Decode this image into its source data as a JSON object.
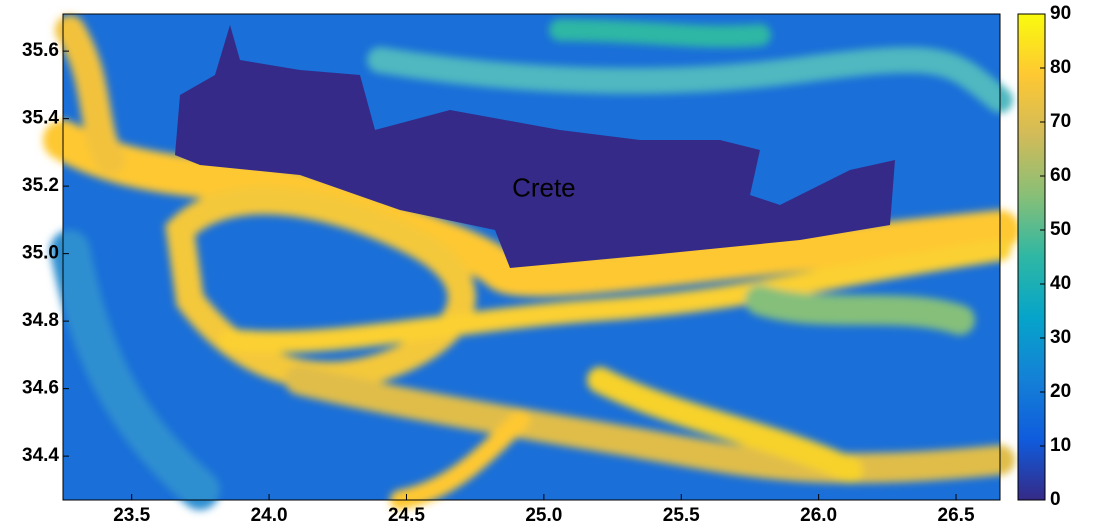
{
  "chart_data": {
    "type": "heatmap",
    "annotation": "Crete",
    "annotation_position": {
      "x": 25.0,
      "y": 35.19
    },
    "xlim": [
      23.25,
      26.66
    ],
    "ylim": [
      34.27,
      35.71
    ],
    "xticks": [
      23.5,
      {
        "value": 24,
        "label": "24.0"
      },
      24.5,
      {
        "value": 25,
        "label": "25.0"
      },
      25.5,
      {
        "value": 26,
        "label": "26.0"
      },
      26.5
    ],
    "yticks": [
      34.4,
      34.6,
      34.8,
      {
        "value": 35,
        "label": "35.0"
      },
      35.2,
      35.4,
      35.6
    ],
    "clim": [
      0,
      90
    ],
    "cticks": [
      0,
      10,
      20,
      30,
      40,
      50,
      60,
      70,
      80,
      90
    ],
    "colormap": [
      "#352a87",
      "#0f5cdd",
      "#1481d6",
      "#06a4ca",
      "#2eb7a4",
      "#87bf77",
      "#d1bb59",
      "#fec832",
      "#f9fb0e"
    ]
  }
}
